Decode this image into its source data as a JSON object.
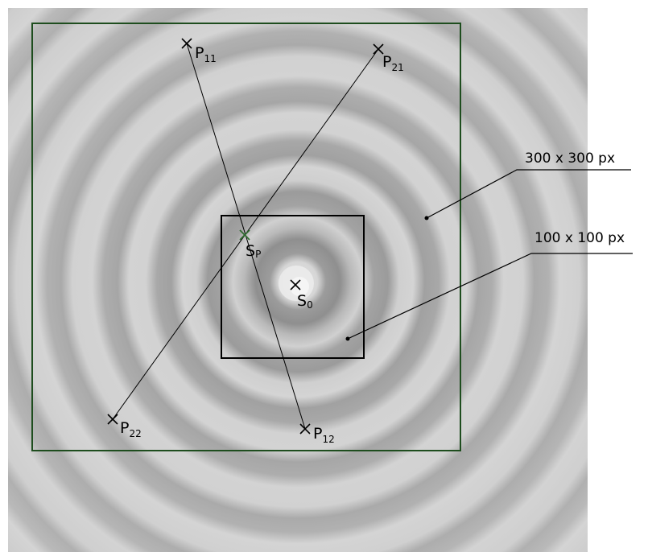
{
  "image": {
    "description_free": true,
    "background_pattern": "concentric-rings-micrograph",
    "colors": {
      "ring_light": "#cdcdcd",
      "ring_dark": "#9d9d9d",
      "outer_box": "#1e4d1e",
      "inner_box": "#000000",
      "sp_marker": "#2f6b2f"
    }
  },
  "boxes": {
    "outer": {
      "label": "300 x 300 px"
    },
    "inner": {
      "label": "100 x 100 px"
    }
  },
  "points": {
    "p11": {
      "main": "P",
      "sub": "11"
    },
    "p12": {
      "main": "P",
      "sub": "12"
    },
    "p21": {
      "main": "P",
      "sub": "21"
    },
    "p22": {
      "main": "P",
      "sub": "22"
    },
    "s0": {
      "main": "S",
      "sub": "0"
    },
    "sp": {
      "main": "S",
      "sub": "P"
    }
  }
}
